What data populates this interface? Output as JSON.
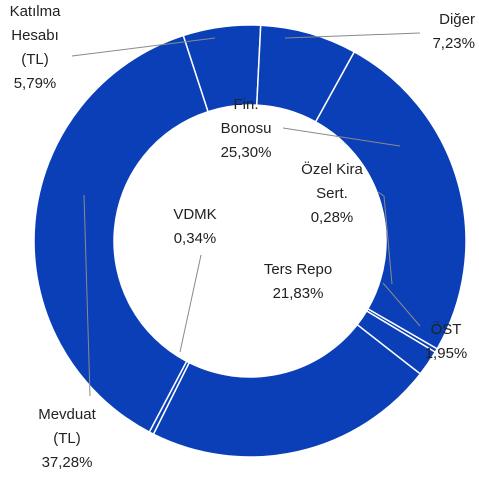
{
  "chart_data": {
    "type": "donut",
    "categories": [
      "Katılma Hesabı (TL)",
      "Diğer",
      "Fin. Bonosu",
      "Özel Kira Sert.",
      "ÖST",
      "Ters Repo",
      "VDMK",
      "Mevduat (TL)"
    ],
    "values": [
      5.79,
      7.23,
      25.3,
      0.28,
      1.95,
      21.83,
      0.34,
      37.28
    ],
    "value_labels": [
      "5,79%",
      "7,23%",
      "25,30%",
      "0,28%",
      "1,95%",
      "21,83%",
      "0,34%",
      "37,28%"
    ],
    "color": "#0a3fb8"
  }
}
